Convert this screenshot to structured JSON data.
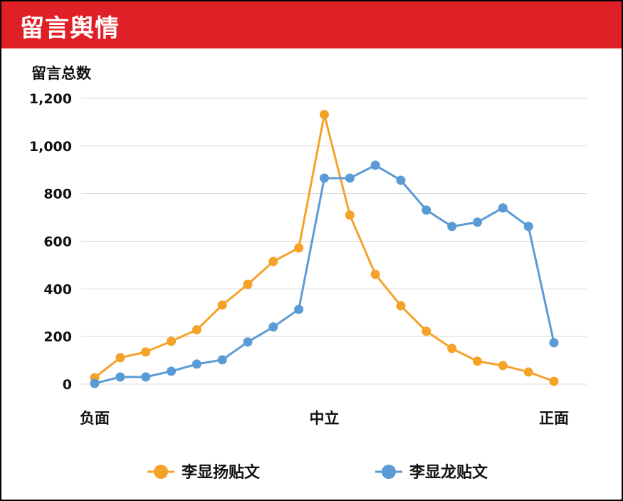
{
  "header": {
    "title": "留言舆情"
  },
  "chart_data": {
    "type": "line",
    "title": "",
    "ylabel": "留言总数",
    "xlabel": "",
    "ylim": [
      0,
      1200
    ],
    "yticks": [
      "0",
      "200",
      "400",
      "600",
      "800",
      "1,000",
      "1,200"
    ],
    "ytick_values": [
      0,
      200,
      400,
      600,
      800,
      1000,
      1200
    ],
    "grid": true,
    "legend_position": "bottom",
    "categories": [
      "负面",
      "",
      "",
      "",
      "",
      "",
      "",
      "",
      "",
      "中立",
      "",
      "",
      "",
      "",
      "",
      "",
      "",
      "",
      "正面"
    ],
    "series": [
      {
        "name": "李显扬贴文",
        "color": "#f5a229",
        "values": [
          27,
          111,
          135,
          180,
          228,
          332,
          419,
          515,
          572,
          1132,
          710,
          461,
          329,
          222,
          150,
          96,
          78,
          51,
          12
        ]
      },
      {
        "name": "李显龙贴文",
        "color": "#5b9bd5",
        "values": [
          3,
          30,
          30,
          54,
          84,
          102,
          177,
          240,
          314,
          865,
          865,
          919,
          856,
          731,
          662,
          680,
          740,
          662,
          174
        ]
      }
    ]
  }
}
